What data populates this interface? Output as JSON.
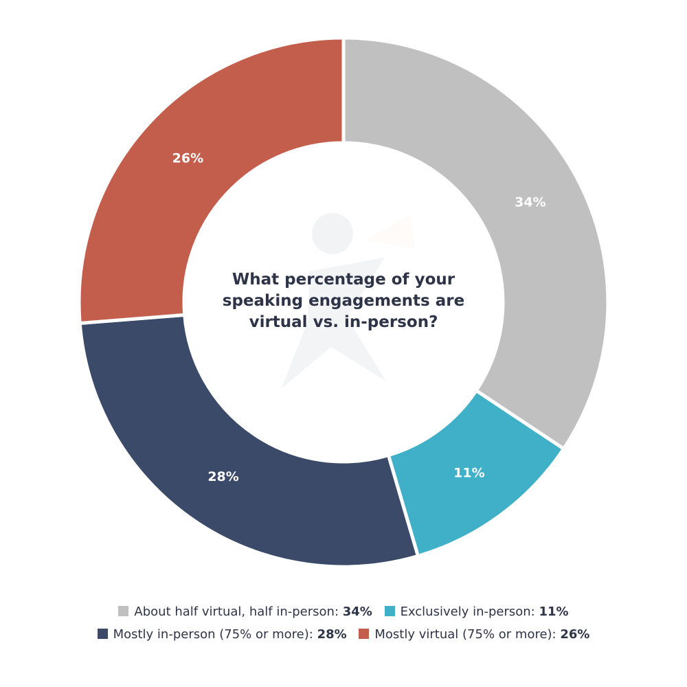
{
  "chart_data": {
    "type": "pie",
    "title": "What percentage of your speaking engagements are virtual vs. in-person?",
    "categories": [
      "About half virtual, half in-person",
      "Exclusively in-person",
      "Mostly in-person (75% or more)",
      "Mostly virtual (75% or more)"
    ],
    "values": [
      34,
      11,
      28,
      26
    ],
    "labels": [
      "34%",
      "11%",
      "28%",
      "26%"
    ],
    "colors": [
      "#c0c0c0",
      "#40afc8",
      "#3b4a68",
      "#c45e4c"
    ],
    "legend_placement": "bottom"
  },
  "legend": {
    "rows": [
      [
        {
          "label": "About half virtual, half in-person: ",
          "value": "34%",
          "color": "#c0c0c0"
        },
        {
          "label": "Exclusively in-person: ",
          "value": "11%",
          "color": "#40afc8"
        }
      ],
      [
        {
          "label": "Mostly in-person (75% or more): ",
          "value": "28%",
          "color": "#3b4a68"
        },
        {
          "label": "Mostly virtual (75% or more): ",
          "value": "26%",
          "color": "#c45e4c"
        }
      ]
    ]
  }
}
